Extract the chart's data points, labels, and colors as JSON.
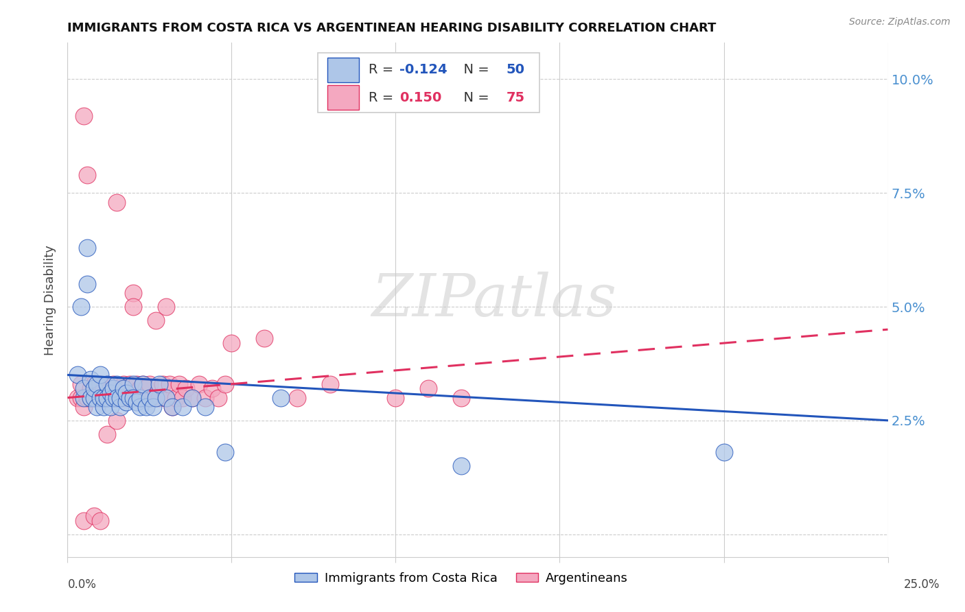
{
  "title": "IMMIGRANTS FROM COSTA RICA VS ARGENTINEAN HEARING DISABILITY CORRELATION CHART",
  "source": "Source: ZipAtlas.com",
  "ylabel": "Hearing Disability",
  "y_ticks": [
    0.0,
    0.025,
    0.05,
    0.075,
    0.1
  ],
  "y_tick_labels": [
    "",
    "2.5%",
    "5.0%",
    "7.5%",
    "10.0%"
  ],
  "x_lim": [
    0.0,
    0.25
  ],
  "y_lim": [
    -0.005,
    0.108
  ],
  "blue_R": "-0.124",
  "blue_N": "50",
  "pink_R": "0.150",
  "pink_N": "75",
  "legend_label1": "Immigrants from Costa Rica",
  "legend_label2": "Argentineans",
  "blue_color": "#aec6e8",
  "pink_color": "#f4a8c0",
  "blue_line_color": "#2255bb",
  "pink_line_color": "#e03060",
  "watermark": "ZIPatlas",
  "blue_scatter_x": [
    0.003,
    0.004,
    0.005,
    0.005,
    0.006,
    0.006,
    0.007,
    0.007,
    0.008,
    0.008,
    0.009,
    0.009,
    0.01,
    0.01,
    0.011,
    0.011,
    0.012,
    0.012,
    0.013,
    0.013,
    0.014,
    0.014,
    0.015,
    0.015,
    0.016,
    0.016,
    0.017,
    0.018,
    0.018,
    0.019,
    0.02,
    0.02,
    0.021,
    0.022,
    0.022,
    0.023,
    0.024,
    0.025,
    0.026,
    0.027,
    0.028,
    0.03,
    0.032,
    0.035,
    0.038,
    0.042,
    0.048,
    0.065,
    0.2,
    0.12
  ],
  "blue_scatter_y": [
    0.035,
    0.05,
    0.03,
    0.032,
    0.063,
    0.055,
    0.034,
    0.03,
    0.03,
    0.032,
    0.028,
    0.033,
    0.03,
    0.035,
    0.028,
    0.03,
    0.033,
    0.03,
    0.031,
    0.028,
    0.03,
    0.032,
    0.033,
    0.03,
    0.028,
    0.03,
    0.032,
    0.029,
    0.031,
    0.03,
    0.033,
    0.03,
    0.029,
    0.028,
    0.03,
    0.033,
    0.028,
    0.03,
    0.028,
    0.03,
    0.033,
    0.03,
    0.028,
    0.028,
    0.03,
    0.028,
    0.018,
    0.03,
    0.018,
    0.015
  ],
  "pink_scatter_x": [
    0.003,
    0.004,
    0.004,
    0.005,
    0.005,
    0.006,
    0.006,
    0.007,
    0.007,
    0.008,
    0.008,
    0.009,
    0.009,
    0.01,
    0.01,
    0.011,
    0.011,
    0.012,
    0.012,
    0.013,
    0.013,
    0.014,
    0.014,
    0.015,
    0.015,
    0.016,
    0.016,
    0.017,
    0.017,
    0.018,
    0.018,
    0.019,
    0.019,
    0.02,
    0.02,
    0.021,
    0.021,
    0.022,
    0.022,
    0.023,
    0.023,
    0.024,
    0.024,
    0.025,
    0.025,
    0.026,
    0.027,
    0.028,
    0.029,
    0.03,
    0.03,
    0.031,
    0.032,
    0.033,
    0.034,
    0.035,
    0.036,
    0.038,
    0.04,
    0.042,
    0.044,
    0.046,
    0.048,
    0.05,
    0.06,
    0.07,
    0.08,
    0.1,
    0.11,
    0.12,
    0.005,
    0.008,
    0.01,
    0.012,
    0.015
  ],
  "pink_scatter_y": [
    0.03,
    0.03,
    0.033,
    0.028,
    0.092,
    0.03,
    0.079,
    0.03,
    0.032,
    0.03,
    0.033,
    0.03,
    0.032,
    0.03,
    0.033,
    0.03,
    0.032,
    0.03,
    0.033,
    0.03,
    0.032,
    0.03,
    0.033,
    0.03,
    0.073,
    0.03,
    0.032,
    0.03,
    0.033,
    0.03,
    0.032,
    0.03,
    0.033,
    0.053,
    0.05,
    0.03,
    0.033,
    0.03,
    0.032,
    0.03,
    0.033,
    0.03,
    0.032,
    0.03,
    0.033,
    0.03,
    0.047,
    0.03,
    0.033,
    0.05,
    0.03,
    0.033,
    0.028,
    0.03,
    0.033,
    0.03,
    0.032,
    0.03,
    0.033,
    0.03,
    0.032,
    0.03,
    0.033,
    0.042,
    0.043,
    0.03,
    0.033,
    0.03,
    0.032,
    0.03,
    0.003,
    0.004,
    0.003,
    0.022,
    0.025
  ],
  "blue_line_x": [
    0.0,
    0.25
  ],
  "blue_line_y": [
    0.035,
    0.025
  ],
  "pink_line_x": [
    0.0,
    0.25
  ],
  "pink_line_y": [
    0.03,
    0.045
  ],
  "x_tick_positions": [
    0.0,
    0.05,
    0.1,
    0.15,
    0.2,
    0.25
  ]
}
